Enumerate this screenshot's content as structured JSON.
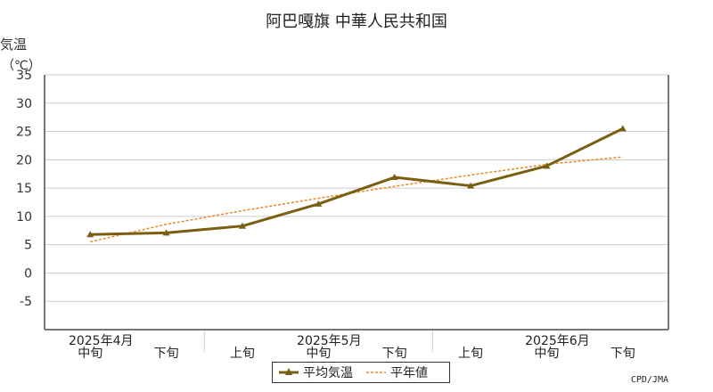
{
  "title": "阿巴嘎旗 中華人民共和国",
  "ylabel": "気温",
  "yunit": "（℃）",
  "credit": "CPD/JMA",
  "colors": {
    "mean": "#7a5f12",
    "normal": "#e8882a",
    "grid": "#cccccc",
    "axis": "#777777"
  },
  "chart_data": {
    "type": "line",
    "x": [
      "2025年4月中旬",
      "2025年4月下旬",
      "2025年5月上旬",
      "2025年5月中旬",
      "2025年5月下旬",
      "2025年6月上旬",
      "2025年6月中旬",
      "2025年6月下旬"
    ],
    "xticks_bottom": [
      "中旬",
      "下旬",
      "上旬",
      "中旬",
      "下旬",
      "上旬",
      "中旬",
      "下旬"
    ],
    "month_labels": [
      {
        "label": "2025年4月",
        "index": 0
      },
      {
        "label": "2025年5月",
        "index": 3
      },
      {
        "label": "2025年6月",
        "index": 6
      }
    ],
    "yticks": [
      -5,
      0,
      5,
      10,
      15,
      20,
      25,
      30,
      35
    ],
    "ylim": [
      -10,
      35
    ],
    "series": [
      {
        "name": "平均気温",
        "style": "solid-triangle",
        "values": [
          6.8,
          7.1,
          8.3,
          12.2,
          16.9,
          15.4,
          18.9,
          25.5
        ]
      },
      {
        "name": "平年値",
        "style": "dashed",
        "values": [
          5.5,
          8.6,
          11.0,
          13.2,
          15.3,
          17.3,
          19.2,
          20.5
        ]
      }
    ]
  }
}
